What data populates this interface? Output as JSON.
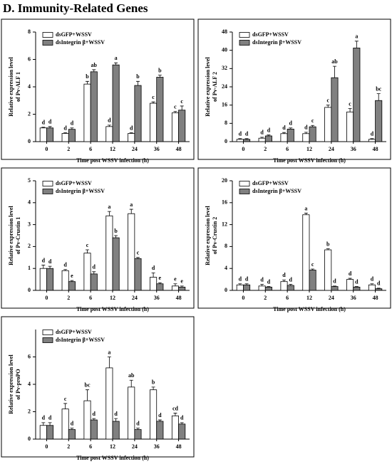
{
  "figure_title": "D. Immunity-Related Genes",
  "chart_data": [
    {
      "type": "bar",
      "y_label": [
        "Relative expression level",
        "of Pv-ALF 1"
      ],
      "x_label": "Time post WSSV infection (h)",
      "categories": [
        "0",
        "2",
        "6",
        "12",
        "24",
        "36",
        "48"
      ],
      "ylim": [
        0,
        8
      ],
      "yticks": [
        0,
        2,
        4,
        6,
        8
      ],
      "legend": "top-left",
      "series": [
        {
          "name": "dsGFP+WSSV",
          "color": "#ffffff",
          "values": [
            1.0,
            0.6,
            4.2,
            1.1,
            0.6,
            2.8,
            2.1
          ],
          "errors": [
            0.05,
            0.05,
            0.2,
            0.1,
            0.05,
            0.1,
            0.1
          ],
          "sig_labels": [
            "d",
            "d",
            "b",
            "d",
            "d",
            "c",
            "c"
          ]
        },
        {
          "name": "dsIntegrin β+WSSV",
          "color": "#808080",
          "values": [
            1.0,
            0.9,
            5.1,
            5.6,
            4.1,
            4.7,
            2.3
          ],
          "errors": [
            0.1,
            0.1,
            0.15,
            0.15,
            0.3,
            0.15,
            0.3
          ],
          "sig_labels": [
            "d",
            "d",
            "ab",
            "a",
            "b",
            "b",
            "c"
          ]
        }
      ]
    },
    {
      "type": "bar",
      "y_label": [
        "Relative expression level",
        "of Pv-ALF 2"
      ],
      "x_label": "Time post WSSV infection (h)",
      "categories": [
        "0",
        "2",
        "6",
        "12",
        "24",
        "36",
        "48"
      ],
      "ylim": [
        0,
        48
      ],
      "yticks": [
        0,
        8,
        16,
        24,
        32,
        40,
        48
      ],
      "legend": "top-left",
      "series": [
        {
          "name": "dsGFP+WSSV",
          "color": "#ffffff",
          "values": [
            1,
            1.5,
            3.5,
            3.5,
            15,
            13,
            1
          ],
          "errors": [
            0.3,
            0.4,
            0.5,
            0.6,
            1,
            1.5,
            0.3
          ],
          "sig_labels": [
            "d",
            "d",
            "d",
            "d",
            "c",
            "c",
            "d"
          ]
        },
        {
          "name": "dsIntegrin β+WSSV",
          "color": "#808080",
          "values": [
            1,
            2.5,
            5.5,
            6.5,
            28,
            41,
            18
          ],
          "errors": [
            0.3,
            0.4,
            0.5,
            0.6,
            5,
            3,
            3
          ],
          "sig_labels": [
            "d",
            "d",
            "d",
            "c",
            "ab",
            "a",
            "bc"
          ]
        }
      ]
    },
    {
      "type": "bar",
      "y_label": [
        "Relative expression level",
        "of Pv-Crustin 1"
      ],
      "x_label": "Time post WSSV infection (h)",
      "categories": [
        "0",
        "2",
        "6",
        "12",
        "24",
        "36",
        "48"
      ],
      "ylim": [
        0,
        5
      ],
      "yticks": [
        0,
        1,
        2,
        3,
        4,
        5
      ],
      "legend": "top-left",
      "series": [
        {
          "name": "dsGFP+WSSV",
          "color": "#ffffff",
          "values": [
            1.0,
            0.9,
            1.7,
            3.4,
            3.5,
            0.6,
            0.2
          ],
          "errors": [
            0.15,
            0.05,
            0.15,
            0.2,
            0.2,
            0.2,
            0.1
          ],
          "sig_labels": [
            "d",
            "d",
            "c",
            "a",
            "a",
            "d",
            "e"
          ]
        },
        {
          "name": "dsIntegrin β+WSSV",
          "color": "#808080",
          "values": [
            1.0,
            0.4,
            0.75,
            2.4,
            1.45,
            0.3,
            0.15
          ],
          "errors": [
            0.1,
            0.05,
            0.1,
            0.1,
            0.05,
            0.05,
            0.05
          ],
          "sig_labels": [
            "d",
            "e",
            "d",
            "b",
            "c",
            "e",
            "e"
          ]
        }
      ]
    },
    {
      "type": "bar",
      "y_label": [
        "Relative expression level",
        "of Pv-Crustin 2"
      ],
      "x_label": "Time post WSSV infection (h)",
      "categories": [
        "0",
        "2",
        "6",
        "12",
        "24",
        "36",
        "48"
      ],
      "ylim": [
        0,
        20
      ],
      "yticks": [
        0,
        4,
        8,
        12,
        16,
        20
      ],
      "legend": "top-left",
      "series": [
        {
          "name": "dsGFP+WSSV",
          "color": "#ffffff",
          "values": [
            1,
            0.8,
            1.6,
            13.8,
            7.4,
            2.0,
            1.0
          ],
          "errors": [
            0.2,
            0.3,
            0.3,
            0.3,
            0.2,
            0.2,
            0.2
          ],
          "sig_labels": [
            "d",
            "d",
            "d",
            "a",
            "b",
            "d",
            "d"
          ]
        },
        {
          "name": "dsIntegrin β+WSSV",
          "color": "#808080",
          "values": [
            1,
            0.6,
            0.9,
            3.7,
            0.7,
            0.6,
            0.3
          ],
          "errors": [
            0.2,
            0.1,
            0.2,
            0.2,
            0.1,
            0.1,
            0.1
          ],
          "sig_labels": [
            "d",
            "d",
            "d",
            "c",
            "d",
            "d",
            "d"
          ]
        }
      ]
    },
    {
      "type": "bar",
      "y_label": [
        "Relative expression level",
        "of Pv-proPO"
      ],
      "x_label": "Time post WSSV infection (h)",
      "categories": [
        "0",
        "2",
        "6",
        "12",
        "24",
        "36",
        "48"
      ],
      "ylim": [
        0,
        8
      ],
      "yticks": [
        0,
        2,
        4,
        6
      ],
      "legend": "top-left",
      "series": [
        {
          "name": "dsGFP+WSSV",
          "color": "#ffffff",
          "values": [
            1.0,
            2.2,
            2.8,
            5.2,
            3.8,
            3.6,
            1.7
          ],
          "errors": [
            0.2,
            0.4,
            0.8,
            0.8,
            0.5,
            0.2,
            0.2
          ],
          "sig_labels": [
            "d",
            "c",
            "bc",
            "a",
            "ab",
            "b",
            "cd"
          ]
        },
        {
          "name": "dsIntegrin β+WSSV",
          "color": "#808080",
          "values": [
            1.0,
            0.7,
            1.4,
            1.3,
            0.7,
            1.3,
            1.1
          ],
          "errors": [
            0.2,
            0.1,
            0.1,
            0.2,
            0.1,
            0.1,
            0.1
          ],
          "sig_labels": [
            "d",
            "d",
            "d",
            "d",
            "d",
            "d",
            "d"
          ]
        }
      ]
    }
  ]
}
